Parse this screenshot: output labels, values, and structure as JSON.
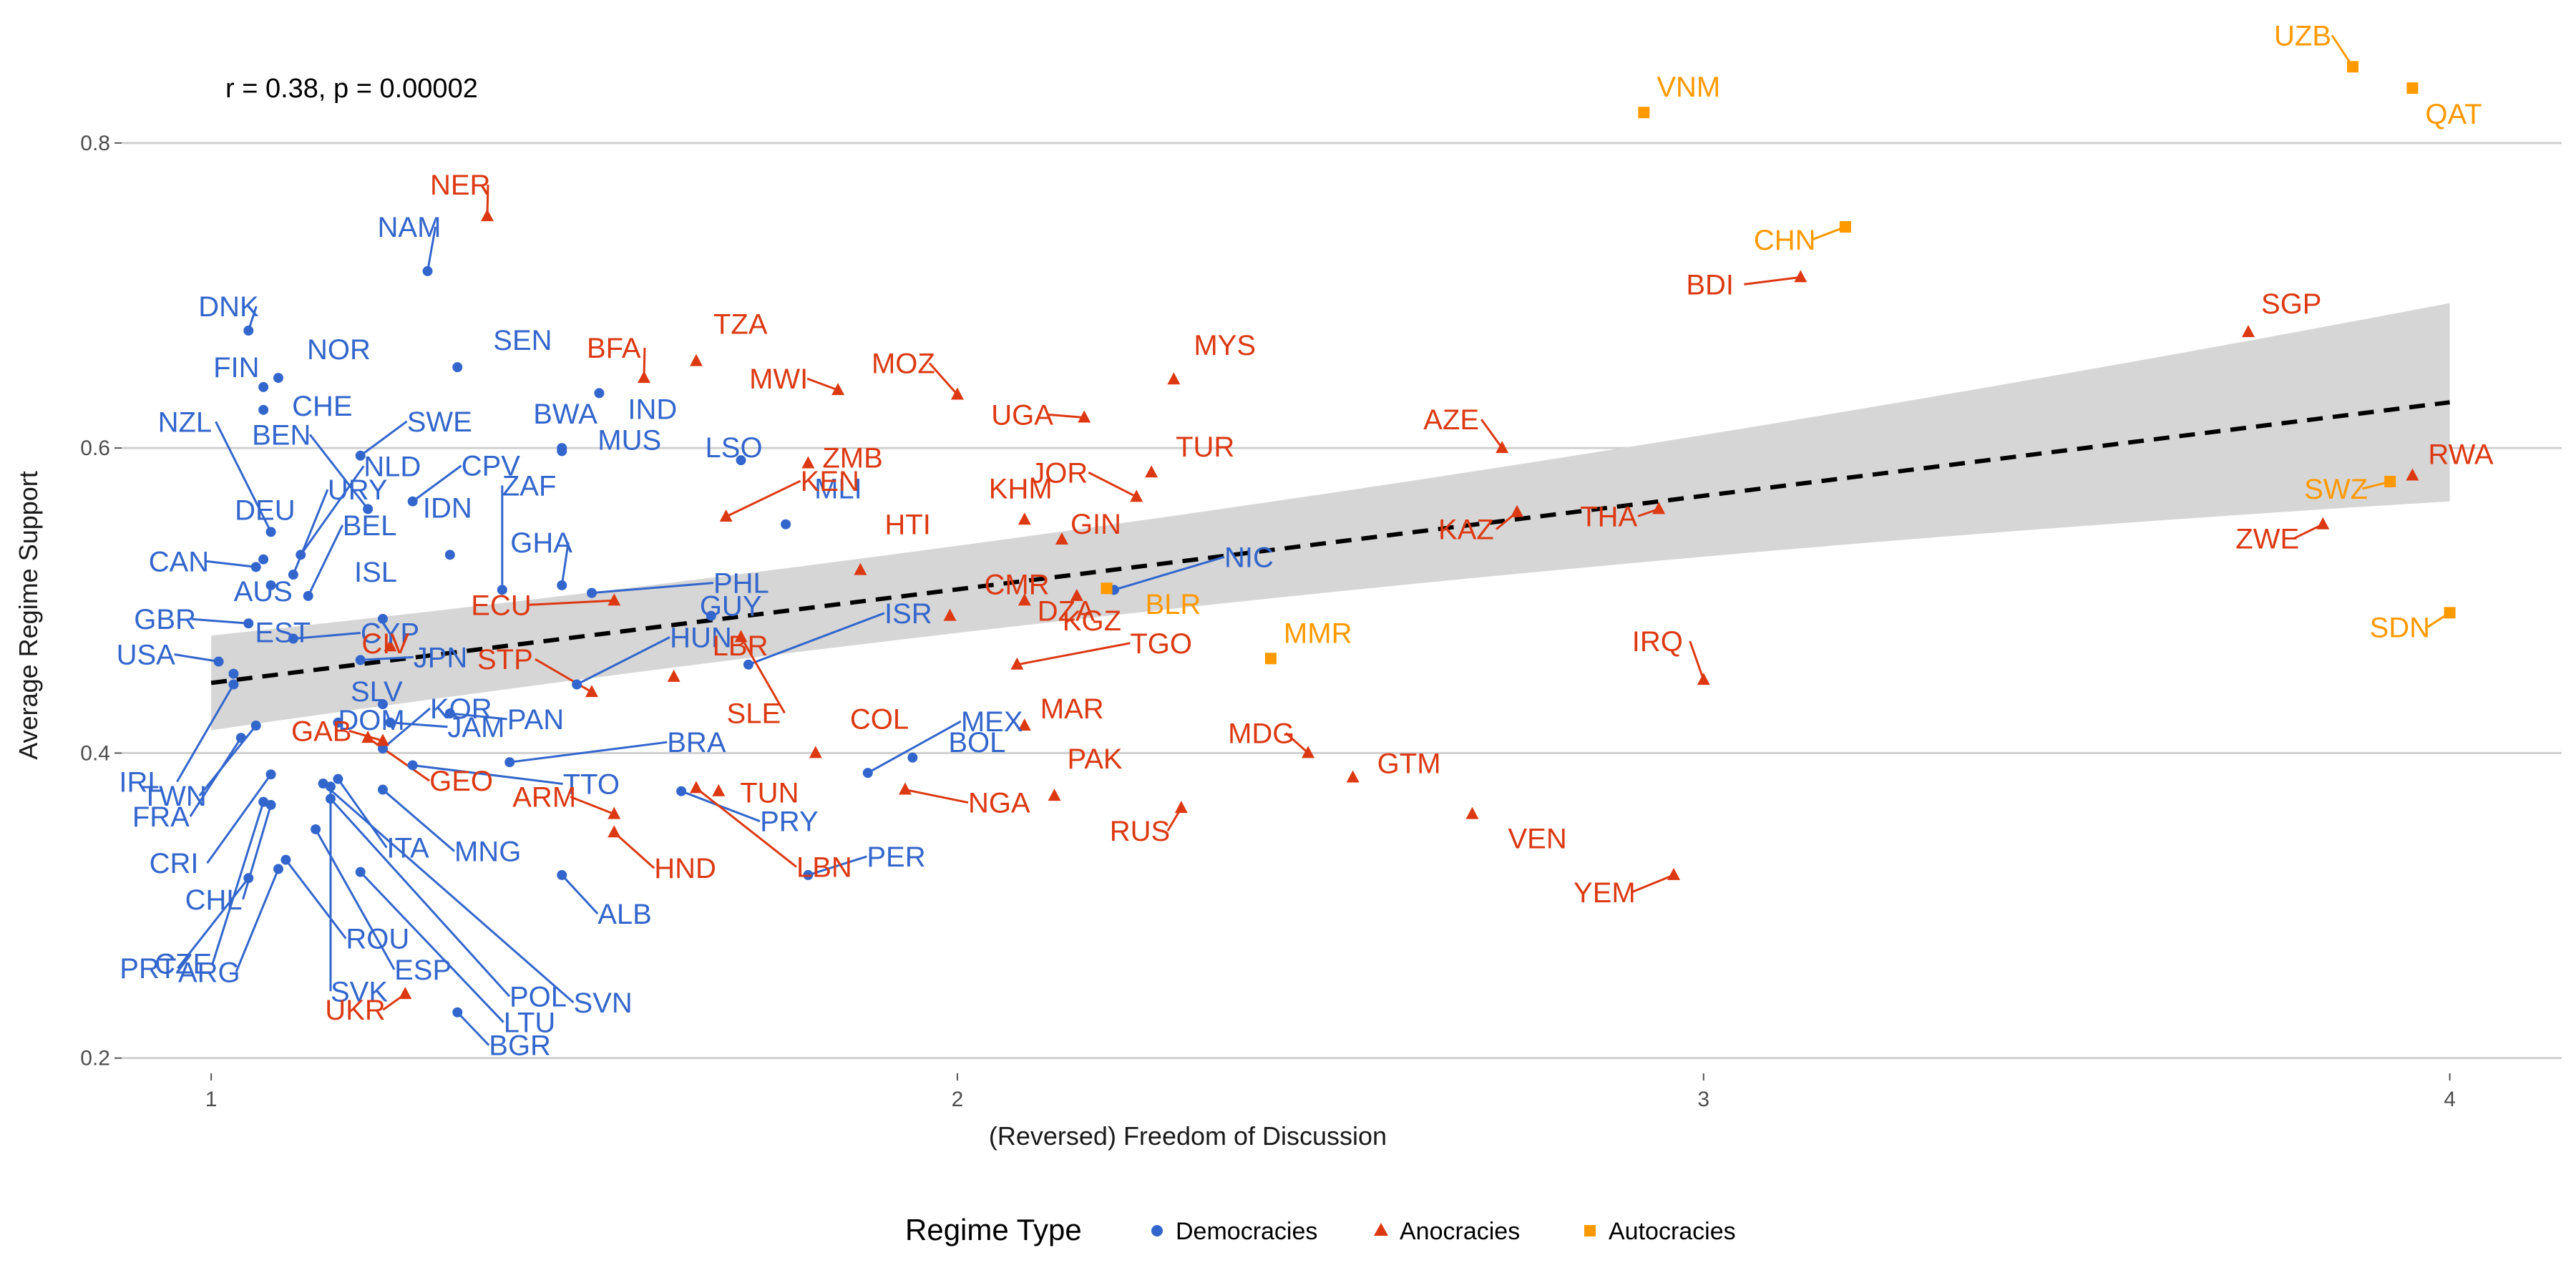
{
  "chart_data": {
    "type": "scatter",
    "xlabel": "(Reversed) Freedom of Discussion",
    "ylabel": "Average Regime Support",
    "xlim": [
      0.88,
      4.15
    ],
    "ylim": [
      0.19,
      0.875
    ],
    "x_ticks": [
      1,
      2,
      3,
      4
    ],
    "y_ticks": [
      0.2,
      0.4,
      0.6,
      0.8
    ],
    "x_tick_labels": [
      "1",
      "2",
      "3",
      "4"
    ],
    "y_tick_labels": [
      "0.2",
      "0.4",
      "0.6",
      "0.8"
    ],
    "grid": true,
    "annotation": "r = 0.38, p = 0.00002",
    "legend": {
      "title": "Regime Type",
      "position": "bottom",
      "entries": [
        {
          "name": "Democracies",
          "color": "#3366CC",
          "shape": "circle"
        },
        {
          "name": "Anocracies",
          "color": "#DC3912",
          "shape": "triangle"
        },
        {
          "name": "Autocracies",
          "color": "#FF9900",
          "shape": "square"
        }
      ]
    },
    "trend": {
      "x": [
        1,
        4
      ],
      "y": [
        0.446,
        0.63
      ],
      "ci_low": [
        0.415,
        0.565
      ],
      "ci_high": [
        0.477,
        0.695
      ],
      "style": "dashed"
    },
    "series": [
      {
        "name": "Democracies",
        "color": "#3366CC",
        "shape": "circle",
        "points": [
          {
            "label": "NAM",
            "x": 1.29,
            "y": 0.716
          },
          {
            "label": "DNK",
            "x": 1.05,
            "y": 0.677
          },
          {
            "label": "NOR",
            "x": 1.09,
            "y": 0.646
          },
          {
            "label": "FIN",
            "x": 1.07,
            "y": 0.64
          },
          {
            "label": "CHE",
            "x": 1.07,
            "y": 0.625
          },
          {
            "label": "SEN",
            "x": 1.33,
            "y": 0.653
          },
          {
            "label": "BWA",
            "x": 1.47,
            "y": 0.6
          },
          {
            "label": "IND",
            "x": 1.52,
            "y": 0.636
          },
          {
            "label": "LSO",
            "x": 1.71,
            "y": 0.592
          },
          {
            "label": "SWE",
            "x": 1.2,
            "y": 0.595
          },
          {
            "label": "BEN",
            "x": 1.21,
            "y": 0.56
          },
          {
            "label": "CPV",
            "x": 1.27,
            "y": 0.565
          },
          {
            "label": "MUS",
            "x": 1.47,
            "y": 0.598
          },
          {
            "label": "NZL",
            "x": 1.08,
            "y": 0.545
          },
          {
            "label": "URY",
            "x": 1.11,
            "y": 0.517
          },
          {
            "label": "NLD",
            "x": 1.12,
            "y": 0.53
          },
          {
            "label": "DEU",
            "x": 1.07,
            "y": 0.527
          },
          {
            "label": "BEL",
            "x": 1.13,
            "y": 0.503
          },
          {
            "label": "CAN",
            "x": 1.06,
            "y": 0.522
          },
          {
            "label": "AUS",
            "x": 1.08,
            "y": 0.51
          },
          {
            "label": "IDN",
            "x": 1.32,
            "y": 0.53
          },
          {
            "label": "ZAF",
            "x": 1.39,
            "y": 0.507
          },
          {
            "label": "MLI",
            "x": 1.77,
            "y": 0.55
          },
          {
            "label": "ISL",
            "x": 1.23,
            "y": 0.488
          },
          {
            "label": "GHA",
            "x": 1.47,
            "y": 0.51
          },
          {
            "label": "PHL",
            "x": 1.51,
            "y": 0.505
          },
          {
            "label": "GBR",
            "x": 1.05,
            "y": 0.485
          },
          {
            "label": "CYP",
            "x": 1.11,
            "y": 0.475
          },
          {
            "label": "GUY",
            "x": 1.67,
            "y": 0.49
          },
          {
            "label": "NIC",
            "x": 2.21,
            "y": 0.507
          },
          {
            "label": "USA",
            "x": 1.01,
            "y": 0.46
          },
          {
            "label": "EST",
            "x": 1.03,
            "y": 0.452
          },
          {
            "label": "JPN",
            "x": 1.2,
            "y": 0.461
          },
          {
            "label": "HUN",
            "x": 1.49,
            "y": 0.445
          },
          {
            "label": "ISR",
            "x": 1.72,
            "y": 0.458
          },
          {
            "label": "IRL",
            "x": 1.03,
            "y": 0.445
          },
          {
            "label": "DOM",
            "x": 1.17,
            "y": 0.42
          },
          {
            "label": "SLV",
            "x": 1.23,
            "y": 0.432
          },
          {
            "label": "JAM",
            "x": 1.24,
            "y": 0.42
          },
          {
            "label": "PAN",
            "x": 1.32,
            "y": 0.426
          },
          {
            "label": "FRA",
            "x": 1.04,
            "y": 0.41
          },
          {
            "label": "KOR",
            "x": 1.23,
            "y": 0.403
          },
          {
            "label": "BRA",
            "x": 1.4,
            "y": 0.394
          },
          {
            "label": "TTO",
            "x": 1.27,
            "y": 0.392
          },
          {
            "label": "MEX",
            "x": 1.88,
            "y": 0.387
          },
          {
            "label": "BOL",
            "x": 1.94,
            "y": 0.397
          },
          {
            "label": "TWN",
            "x": 1.06,
            "y": 0.418
          },
          {
            "label": "CRI",
            "x": 1.08,
            "y": 0.386
          },
          {
            "label": "CHL",
            "x": 1.08,
            "y": 0.366
          },
          {
            "label": "CZE",
            "x": 1.07,
            "y": 0.368
          },
          {
            "label": "ITA",
            "x": 1.17,
            "y": 0.383
          },
          {
            "label": "MNG",
            "x": 1.23,
            "y": 0.376
          },
          {
            "label": "ALB",
            "x": 1.47,
            "y": 0.32
          },
          {
            "label": "PRY",
            "x": 1.63,
            "y": 0.375
          },
          {
            "label": "PER",
            "x": 1.8,
            "y": 0.32
          },
          {
            "label": "PRT",
            "x": 1.05,
            "y": 0.318
          },
          {
            "label": "ROU",
            "x": 1.1,
            "y": 0.33
          },
          {
            "label": "ARG",
            "x": 1.09,
            "y": 0.324
          },
          {
            "label": "SVK",
            "x": 1.16,
            "y": 0.378
          },
          {
            "label": "ESP",
            "x": 1.14,
            "y": 0.35
          },
          {
            "label": "LTU",
            "x": 1.2,
            "y": 0.322
          },
          {
            "label": "POL",
            "x": 1.16,
            "y": 0.37
          },
          {
            "label": "SVN",
            "x": 1.15,
            "y": 0.38
          },
          {
            "label": "BGR",
            "x": 1.33,
            "y": 0.23
          }
        ]
      },
      {
        "name": "Anocracies",
        "color": "#DC3912",
        "shape": "triangle",
        "points": [
          {
            "label": "NER",
            "x": 1.37,
            "y": 0.752
          },
          {
            "label": "BFA",
            "x": 1.58,
            "y": 0.646
          },
          {
            "label": "TZA",
            "x": 1.65,
            "y": 0.657
          },
          {
            "label": "MWI",
            "x": 1.84,
            "y": 0.638
          },
          {
            "label": "MOZ",
            "x": 2.0,
            "y": 0.635
          },
          {
            "label": "MYS",
            "x": 2.29,
            "y": 0.645
          },
          {
            "label": "UGA",
            "x": 2.17,
            "y": 0.62
          },
          {
            "label": "ZMB",
            "x": 1.8,
            "y": 0.59
          },
          {
            "label": "TUR",
            "x": 2.26,
            "y": 0.584
          },
          {
            "label": "JOR",
            "x": 2.24,
            "y": 0.568
          },
          {
            "label": "KHM",
            "x": 2.09,
            "y": 0.553
          },
          {
            "label": "KEN",
            "x": 1.69,
            "y": 0.555
          },
          {
            "label": "HTI",
            "x": 1.87,
            "y": 0.52
          },
          {
            "label": "CMR",
            "x": 1.99,
            "y": 0.49
          },
          {
            "label": "GIN",
            "x": 2.14,
            "y": 0.54
          },
          {
            "label": "DZA",
            "x": 2.09,
            "y": 0.5
          },
          {
            "label": "KGZ",
            "x": 2.16,
            "y": 0.503
          },
          {
            "label": "ECU",
            "x": 1.54,
            "y": 0.5
          },
          {
            "label": "CIV",
            "x": 1.24,
            "y": 0.47
          },
          {
            "label": "STP",
            "x": 1.51,
            "y": 0.44
          },
          {
            "label": "SLE",
            "x": 1.71,
            "y": 0.476
          },
          {
            "label": "LBR",
            "x": 1.62,
            "y": 0.45
          },
          {
            "label": "TGO",
            "x": 2.08,
            "y": 0.458
          },
          {
            "label": "COL",
            "x": 1.81,
            "y": 0.4
          },
          {
            "label": "MAR",
            "x": 2.09,
            "y": 0.418
          },
          {
            "label": "GAB",
            "x": 1.23,
            "y": 0.408
          },
          {
            "label": "GEO",
            "x": 1.21,
            "y": 0.41
          },
          {
            "label": "TUN",
            "x": 1.68,
            "y": 0.375
          },
          {
            "label": "NGA",
            "x": 1.93,
            "y": 0.376
          },
          {
            "label": "PAK",
            "x": 2.13,
            "y": 0.372
          },
          {
            "label": "RUS",
            "x": 2.3,
            "y": 0.364
          },
          {
            "label": "LBN",
            "x": 1.65,
            "y": 0.377
          },
          {
            "label": "ARM",
            "x": 1.54,
            "y": 0.36
          },
          {
            "label": "HND",
            "x": 1.54,
            "y": 0.348
          },
          {
            "label": "MDG",
            "x": 2.47,
            "y": 0.4
          },
          {
            "label": "GTM",
            "x": 2.53,
            "y": 0.384
          },
          {
            "label": "VEN",
            "x": 2.69,
            "y": 0.36
          },
          {
            "label": "YEM",
            "x": 2.96,
            "y": 0.32
          },
          {
            "label": "IRQ",
            "x": 3.0,
            "y": 0.448
          },
          {
            "label": "UKR",
            "x": 1.26,
            "y": 0.242
          },
          {
            "label": "BDI",
            "x": 3.13,
            "y": 0.712
          },
          {
            "label": "SGP",
            "x": 3.73,
            "y": 0.676
          },
          {
            "label": "AZE",
            "x": 2.73,
            "y": 0.6
          },
          {
            "label": "KAZ",
            "x": 2.75,
            "y": 0.558
          },
          {
            "label": "THA",
            "x": 2.94,
            "y": 0.56
          },
          {
            "label": "RWA",
            "x": 3.95,
            "y": 0.582
          },
          {
            "label": "ZWE",
            "x": 3.83,
            "y": 0.55
          }
        ]
      },
      {
        "name": "Autocracies",
        "color": "#FF9900",
        "shape": "square",
        "points": [
          {
            "label": "UZB",
            "x": 3.87,
            "y": 0.85
          },
          {
            "label": "QAT",
            "x": 3.95,
            "y": 0.836
          },
          {
            "label": "VNM",
            "x": 2.92,
            "y": 0.82
          },
          {
            "label": "CHN",
            "x": 3.19,
            "y": 0.745
          },
          {
            "label": "SWZ",
            "x": 3.92,
            "y": 0.578
          },
          {
            "label": "SDN",
            "x": 4.0,
            "y": 0.492
          },
          {
            "label": "BLR",
            "x": 2.2,
            "y": 0.508
          },
          {
            "label": "MMR",
            "x": 2.42,
            "y": 0.462
          }
        ]
      }
    ]
  }
}
